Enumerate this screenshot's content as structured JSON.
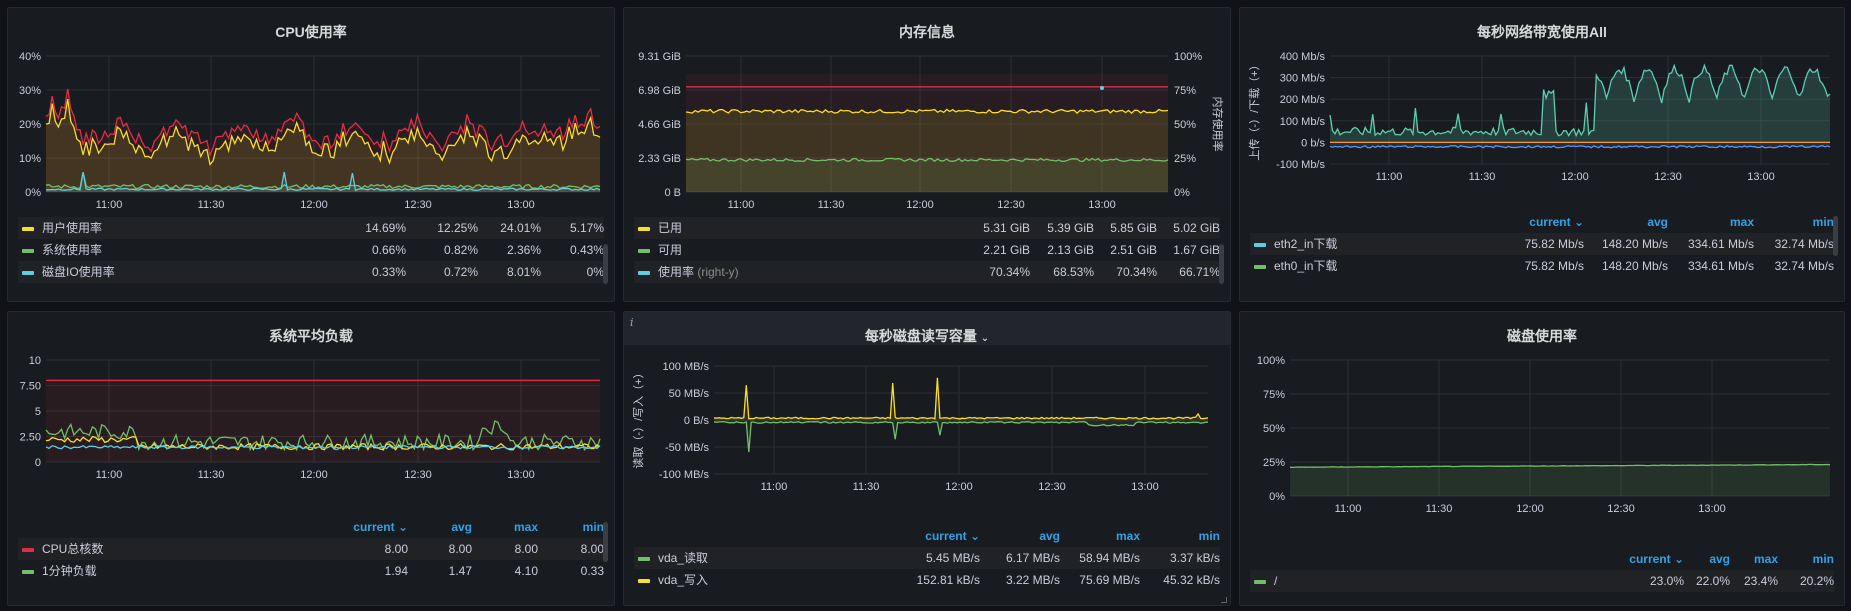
{
  "colors": {
    "yellow": "#fade2a",
    "green": "#73bf69",
    "red": "#e02f44",
    "cyan": "#5ccee5",
    "teal": "#5ccfb0",
    "blue": "#5794f2",
    "orange": "#ff9830",
    "accent": "#33a2e5"
  },
  "panels": {
    "cpu": {
      "title": "CPU使用率",
      "y_ticks": [
        "40%",
        "30%",
        "20%",
        "10%",
        "0%"
      ],
      "x_ticks": [
        "11:00",
        "11:30",
        "12:00",
        "12:30",
        "13:00"
      ],
      "legend": [
        {
          "name": "用户使用率",
          "color": "#fade2a",
          "vals": [
            "5.17%",
            "24.01%",
            "12.25%",
            "14.69%"
          ]
        },
        {
          "name": "系统使用率",
          "color": "#73bf69",
          "vals": [
            "0.43%",
            "2.36%",
            "0.82%",
            "0.66%"
          ]
        },
        {
          "name": "磁盘IO使用率",
          "color": "#5ccee5",
          "vals": [
            "0%",
            "8.01%",
            "0.72%",
            "0.33%"
          ]
        }
      ]
    },
    "mem": {
      "title": "内存信息",
      "y_left": [
        "9.31 GiB",
        "6.98 GiB",
        "4.66 GiB",
        "2.33 GiB",
        "0 B"
      ],
      "y_right": [
        "100%",
        "75%",
        "50%",
        "25%",
        "0%"
      ],
      "y_right_label": "内存使用率",
      "x_ticks": [
        "11:00",
        "11:30",
        "12:00",
        "12:30",
        "13:00"
      ],
      "legend": [
        {
          "name": "已用",
          "suffix": "",
          "color": "#fade2a",
          "vals": [
            "5.02 GiB",
            "5.85 GiB",
            "5.39 GiB",
            "5.31 GiB"
          ]
        },
        {
          "name": "可用",
          "suffix": "",
          "color": "#73bf69",
          "vals": [
            "1.67 GiB",
            "2.51 GiB",
            "2.13 GiB",
            "2.21 GiB"
          ]
        },
        {
          "name": "使用率",
          "suffix": "(right-y)",
          "color": "#5ccee5",
          "vals": [
            "66.71%",
            "70.34%",
            "68.53%",
            "70.34%"
          ]
        }
      ]
    },
    "net": {
      "title": "每秒网络带宽使用All",
      "y_ticks": [
        "400 Mb/s",
        "300 Mb/s",
        "200 Mb/s",
        "100 Mb/s",
        "0 b/s",
        "-100 Mb/s"
      ],
      "y_label": "上传（-）/下载（+）",
      "x_ticks": [
        "11:00",
        "11:30",
        "12:00",
        "12:30",
        "13:00"
      ],
      "headers": [
        "min",
        "max",
        "avg",
        "current"
      ],
      "legend": [
        {
          "name": "eth2_in下载",
          "color": "#5ccee5",
          "vals": [
            "32.74 Mb/s",
            "334.61 Mb/s",
            "148.20 Mb/s",
            "75.82 Mb/s"
          ]
        },
        {
          "name": "eth0_in下载",
          "color": "#73bf69",
          "vals": [
            "32.74 Mb/s",
            "334.61 Mb/s",
            "148.20 Mb/s",
            "75.82 Mb/s"
          ]
        }
      ]
    },
    "load": {
      "title": "系统平均负载",
      "y_ticks": [
        "10",
        "7.50",
        "5",
        "2.50",
        "0"
      ],
      "x_ticks": [
        "11:00",
        "11:30",
        "12:00",
        "12:30",
        "13:00"
      ],
      "headers": [
        "min",
        "max",
        "avg",
        "current"
      ],
      "legend": [
        {
          "name": "CPU总核数",
          "color": "#e02f44",
          "vals": [
            "8.00",
            "8.00",
            "8.00",
            "8.00"
          ]
        },
        {
          "name": "1分钟负载",
          "color": "#73bf69",
          "vals": [
            "0.33",
            "4.10",
            "1.47",
            "1.94"
          ]
        }
      ]
    },
    "disk_io": {
      "title": "每秒磁盘读写容量",
      "info": "i",
      "y_ticks": [
        "100 MB/s",
        "50 MB/s",
        "0 B/s",
        "-50 MB/s",
        "-100 MB/s"
      ],
      "y_label": "读取（-）/写入（+）",
      "x_ticks": [
        "11:00",
        "11:30",
        "12:00",
        "12:30",
        "13:00"
      ],
      "headers": [
        "min",
        "max",
        "avg",
        "current"
      ],
      "legend": [
        {
          "name": "vda_读取",
          "color": "#73bf69",
          "vals": [
            "3.37 kB/s",
            "58.94 MB/s",
            "6.17 MB/s",
            "5.45 MB/s"
          ]
        },
        {
          "name": "vda_写入",
          "color": "#fade2a",
          "vals": [
            "45.32 kB/s",
            "75.69 MB/s",
            "3.22 MB/s",
            "152.81 kB/s"
          ]
        }
      ]
    },
    "disk_usage": {
      "title": "磁盘使用率",
      "y_ticks": [
        "100%",
        "75%",
        "50%",
        "25%",
        "0%"
      ],
      "x_ticks": [
        "11:00",
        "11:30",
        "12:00",
        "12:30",
        "13:00"
      ],
      "headers": [
        "min",
        "max",
        "avg",
        "current"
      ],
      "legend": [
        {
          "name": "/",
          "color": "#73bf69",
          "vals": [
            "20.2%",
            "23.4%",
            "22.0%",
            "23.0%"
          ]
        }
      ]
    }
  }
}
